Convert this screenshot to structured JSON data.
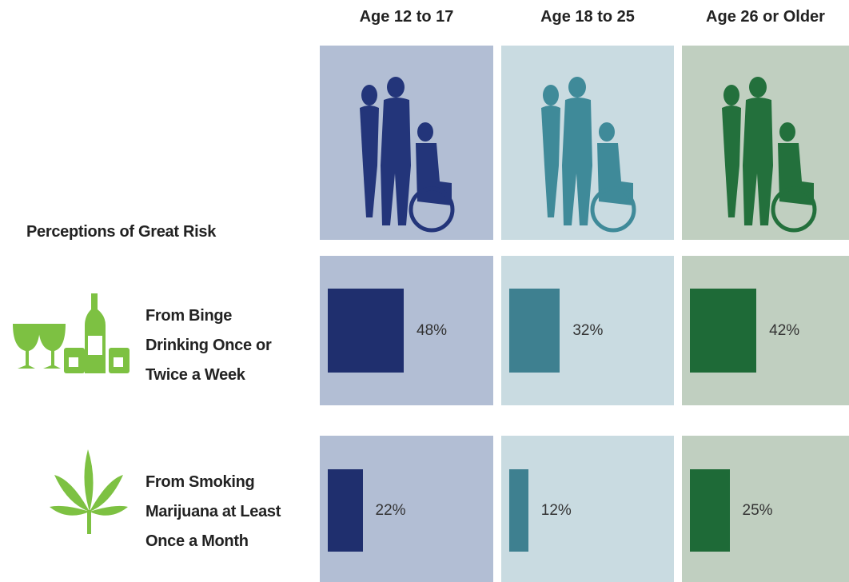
{
  "chart_data": {
    "type": "bar",
    "title": "Perceptions of Great Risk",
    "categories": [
      "From Binge Drinking Once or Twice a Week",
      "From Smoking Marijuana at Least Once a Month"
    ],
    "series": [
      {
        "name": "Age 12 to 17",
        "color": "#1f2f6e",
        "values": [
          48,
          22
        ],
        "value_labels": [
          "48%",
          "22%"
        ]
      },
      {
        "name": "Age 18 to 25",
        "color": "#3e8090",
        "values": [
          32,
          12
        ],
        "value_labels": [
          "32%",
          "12%"
        ]
      },
      {
        "name": "Age 26 or Older",
        "color": "#1e6a37",
        "values": [
          42,
          25
        ],
        "value_labels": [
          "42%",
          "25%"
        ]
      }
    ]
  }
}
